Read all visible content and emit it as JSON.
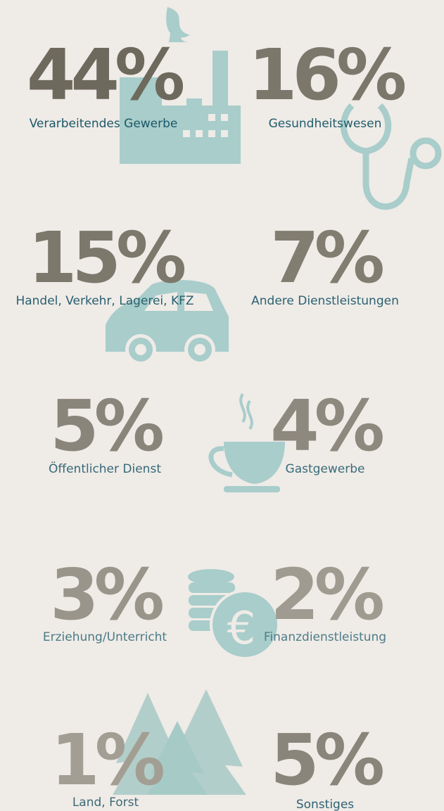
{
  "items": [
    {
      "percent": "44%",
      "label": "Verarbeitendes Gewerbe"
    },
    {
      "percent": "16%",
      "label": "Gesundheitswesen"
    },
    {
      "percent": "15%",
      "label": "Handel, Verkehr, Lagerei, KFZ"
    },
    {
      "percent": "7%",
      "label": "Andere Dienstleistungen"
    },
    {
      "percent": "5%",
      "label": "Öffentlicher Dienst"
    },
    {
      "percent": "4%",
      "label": "Gastgewerbe"
    },
    {
      "percent": "3%",
      "label": "Erziehung/Unterricht"
    },
    {
      "percent": "2%",
      "label": "Finanzdienstleistung"
    },
    {
      "percent": "1%",
      "label": "Land, Forst"
    },
    {
      "percent": "5%",
      "label": "Sonstiges"
    }
  ]
}
